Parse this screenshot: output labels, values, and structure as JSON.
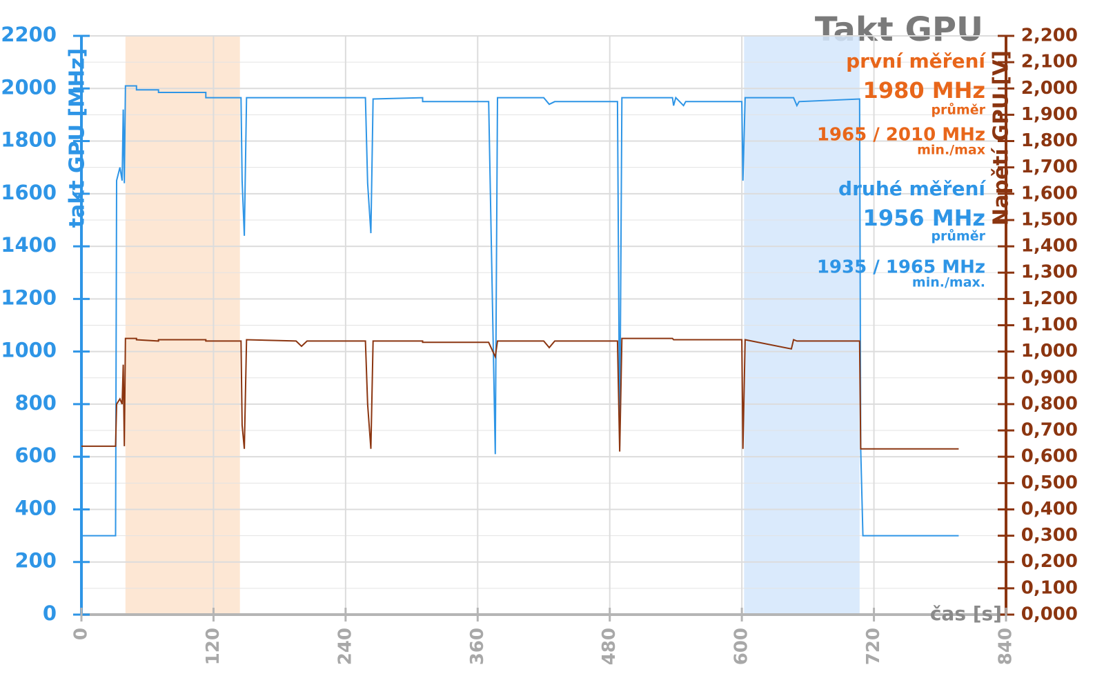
{
  "chart_data": {
    "type": "line",
    "title": "Takt GPU",
    "x_label": "čas [s]",
    "y_label": "takt GPU [MHz]",
    "y2_label": "Napětí GPU [V]",
    "xlim": [
      0,
      840
    ],
    "xticks": [
      0,
      120,
      240,
      360,
      480,
      600,
      720,
      840
    ],
    "ylim": [
      0,
      2200
    ],
    "yticks": [
      0,
      200,
      400,
      600,
      800,
      1000,
      1200,
      1400,
      1600,
      1800,
      2000,
      2200
    ],
    "y2lim": [
      0,
      2.2
    ],
    "y2ticks": [
      {
        "value": 0,
        "label": "0,000"
      },
      {
        "value": 0.1,
        "label": "0,100"
      },
      {
        "value": 0.2,
        "label": "0,200"
      },
      {
        "value": 0.3,
        "label": "0,300"
      },
      {
        "value": 0.4,
        "label": "0,400"
      },
      {
        "value": 0.5,
        "label": "0,500"
      },
      {
        "value": 0.6,
        "label": "0,600"
      },
      {
        "value": 0.7,
        "label": "0,700"
      },
      {
        "value": 0.8,
        "label": "0,800"
      },
      {
        "value": 0.9,
        "label": "0,900"
      },
      {
        "value": 1.0,
        "label": "1,000"
      },
      {
        "value": 1.1,
        "label": "1,100"
      },
      {
        "value": 1.2,
        "label": "1,200"
      },
      {
        "value": 1.3,
        "label": "1,300"
      },
      {
        "value": 1.4,
        "label": "1,400"
      },
      {
        "value": 1.5,
        "label": "1,500"
      },
      {
        "value": 1.6,
        "label": "1,600"
      },
      {
        "value": 1.7,
        "label": "1,700"
      },
      {
        "value": 1.8,
        "label": "1,800"
      },
      {
        "value": 1.9,
        "label": "1,900"
      },
      {
        "value": 2.0,
        "label": "2,000"
      },
      {
        "value": 2.1,
        "label": "2,100"
      },
      {
        "value": 2.2,
        "label": "2,200"
      }
    ],
    "grid": true,
    "regions": [
      {
        "x": [
          40,
          144
        ],
        "color": "#fde3cc"
      },
      {
        "x": [
          602,
          707
        ],
        "color": "#d3e6fb"
      }
    ],
    "x": [
      0,
      31,
      32,
      35,
      37,
      38,
      39,
      40,
      50,
      50,
      70,
      70,
      113,
      113,
      145,
      146,
      148,
      150,
      195,
      200,
      205,
      258,
      260,
      263,
      265,
      310,
      310,
      370,
      376,
      378,
      420,
      425,
      430,
      487,
      489,
      491,
      537,
      538,
      540,
      547,
      549,
      600,
      601,
      603,
      645,
      647,
      650,
      652,
      707,
      708,
      710,
      797
    ],
    "series": [
      {
        "name": "takt GPU",
        "color": "#2e95e6",
        "axis": "y",
        "values": [
          300,
          300,
          1650,
          1700,
          1650,
          1920,
          1640,
          2010,
          2010,
          1995,
          1995,
          1985,
          1985,
          1965,
          1965,
          1650,
          1440,
          1965,
          1965,
          1965,
          1965,
          1965,
          1640,
          1450,
          1960,
          1965,
          1950,
          1950,
          610,
          1965,
          1965,
          1940,
          1950,
          1950,
          640,
          1965,
          1965,
          1935,
          1965,
          1935,
          1950,
          1950,
          1650,
          1965,
          1965,
          1965,
          1935,
          1950,
          1960,
          630,
          300,
          300
        ]
      },
      {
        "name": "napětí GPU",
        "color": "#8b3510",
        "axis": "y2",
        "values": [
          0.64,
          0.64,
          0.8,
          0.82,
          0.8,
          0.95,
          0.64,
          1.05,
          1.05,
          1.045,
          1.04,
          1.045,
          1.045,
          1.04,
          1.04,
          0.72,
          0.63,
          1.045,
          1.04,
          1.02,
          1.04,
          1.04,
          0.8,
          0.63,
          1.04,
          1.04,
          1.035,
          1.035,
          0.98,
          1.04,
          1.04,
          1.015,
          1.04,
          1.04,
          0.62,
          1.05,
          1.05,
          1.045,
          1.045,
          1.045,
          1.045,
          1.045,
          0.63,
          1.045,
          1.01,
          1.045,
          1.04,
          1.04,
          1.04,
          0.63,
          0.63,
          0.63
        ]
      }
    ],
    "annotations": [
      {
        "text": "první měření",
        "color": "#e8661a"
      },
      {
        "text": "1980 MHz",
        "color": "#e8661a"
      },
      {
        "text": "průměr",
        "color": "#e8661a"
      },
      {
        "text": "1965 / 2010 MHz",
        "color": "#e8661a"
      },
      {
        "text": "min./max",
        "color": "#e8661a"
      },
      {
        "text": "druhé měření",
        "color": "#2e95e6"
      },
      {
        "text": "1956 MHz",
        "color": "#2e95e6"
      },
      {
        "text": "průměr",
        "color": "#2e95e6"
      },
      {
        "text": "1935 / 1965 MHz",
        "color": "#2e95e6"
      },
      {
        "text": "min./max.",
        "color": "#2e95e6"
      }
    ]
  }
}
